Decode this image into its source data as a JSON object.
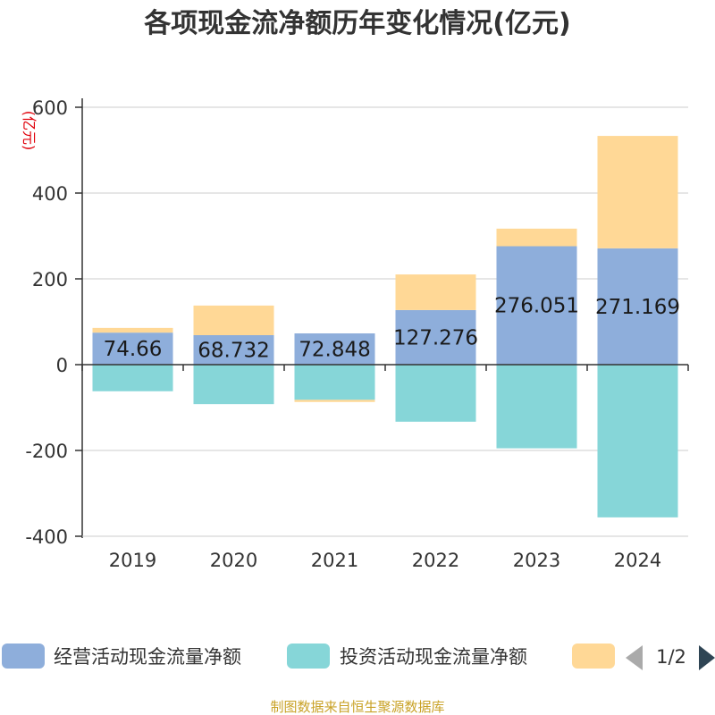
{
  "chart_data": {
    "type": "bar",
    "stacked": true,
    "title": "各项现金流净额历年变化情况(亿元)",
    "ylabel": "(亿元)",
    "categories": [
      "2019",
      "2020",
      "2021",
      "2022",
      "2023",
      "2024"
    ],
    "ylim": [
      -400,
      600
    ],
    "yticks": [
      600,
      400,
      200,
      0,
      -200,
      -400
    ],
    "series": [
      {
        "name": "经营活动现金流量净额",
        "color": "#8eaedb",
        "values": [
          74.66,
          68.732,
          72.848,
          127.276,
          276.051,
          271.169
        ],
        "data_labels": [
          "74.66",
          "68.732",
          "72.848",
          "127.276",
          "276.051",
          "271.169"
        ]
      },
      {
        "name": "投资活动现金流量净额",
        "color": "#86d6d8",
        "values": [
          -62,
          -92,
          -82,
          -133,
          -195,
          -356
        ]
      },
      {
        "name": "",
        "color": "#ffd896",
        "values": [
          11,
          69,
          -5,
          83,
          41,
          262
        ]
      }
    ],
    "legend": {
      "position": "bottom",
      "items": [
        "经营活动现金流量净额",
        "投资活动现金流量净额",
        ""
      ],
      "page": "1/2"
    }
  },
  "source": "制图数据来自恒生聚源数据库"
}
